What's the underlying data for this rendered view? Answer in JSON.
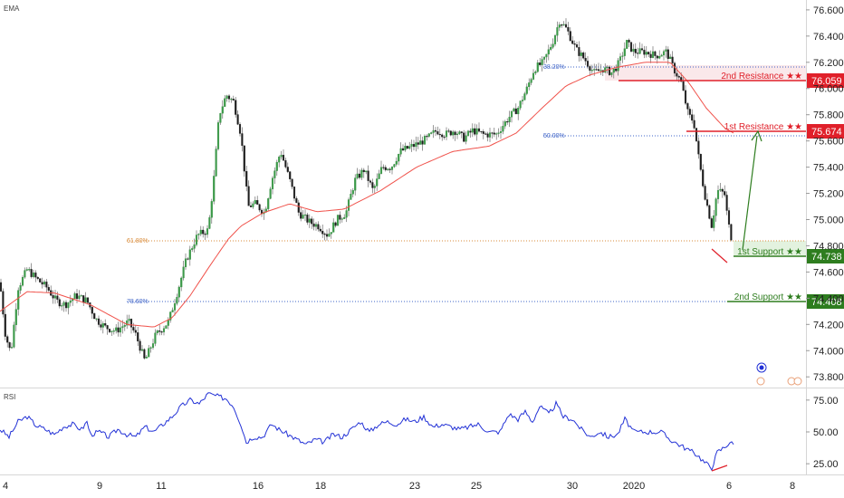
{
  "chart_data": [
    {
      "type": "candlestick",
      "indicator_label": "EMA",
      "y_ticks": [
        "76.600",
        "76.400",
        "76.200",
        "76.000",
        "75.800",
        "75.600",
        "75.400",
        "75.200",
        "75.000",
        "74.800",
        "74.600",
        "74.400",
        "74.200",
        "74.000",
        "73.800"
      ],
      "ylim": [
        73.76,
        76.62
      ],
      "x_ticks": [
        "4",
        "9",
        "11",
        "16",
        "18",
        "23",
        "25",
        "30",
        "2020",
        "6",
        "8"
      ],
      "price_series": [
        [
          0,
          74.52
        ],
        [
          6,
          74.12
        ],
        [
          12,
          73.98
        ],
        [
          20,
          74.48
        ],
        [
          30,
          74.62
        ],
        [
          40,
          74.55
        ],
        [
          52,
          74.48
        ],
        [
          62,
          74.38
        ],
        [
          72,
          74.35
        ],
        [
          84,
          74.42
        ],
        [
          96,
          74.38
        ],
        [
          106,
          74.24
        ],
        [
          116,
          74.18
        ],
        [
          128,
          74.15
        ],
        [
          142,
          74.22
        ],
        [
          150,
          74.12
        ],
        [
          160,
          73.92
        ],
        [
          172,
          74.12
        ],
        [
          186,
          74.22
        ],
        [
          196,
          74.45
        ],
        [
          206,
          74.7
        ],
        [
          218,
          74.88
        ],
        [
          230,
          74.92
        ],
        [
          236,
          75.3
        ],
        [
          242,
          75.8
        ],
        [
          250,
          75.95
        ],
        [
          258,
          75.9
        ],
        [
          266,
          75.65
        ],
        [
          274,
          75.1
        ],
        [
          282,
          75.12
        ],
        [
          292,
          75.05
        ],
        [
          300,
          75.3
        ],
        [
          310,
          75.52
        ],
        [
          320,
          75.3
        ],
        [
          330,
          75.05
        ],
        [
          342,
          74.98
        ],
        [
          352,
          74.95
        ],
        [
          362,
          74.88
        ],
        [
          372,
          75.0
        ],
        [
          382,
          75.05
        ],
        [
          392,
          75.3
        ],
        [
          402,
          75.38
        ],
        [
          412,
          75.22
        ],
        [
          422,
          75.4
        ],
        [
          432,
          75.4
        ],
        [
          442,
          75.52
        ],
        [
          452,
          75.55
        ],
        [
          462,
          75.58
        ],
        [
          472,
          75.62
        ],
        [
          482,
          75.68
        ],
        [
          492,
          75.65
        ],
        [
          502,
          75.68
        ],
        [
          512,
          75.62
        ],
        [
          522,
          75.68
        ],
        [
          534,
          75.65
        ],
        [
          548,
          75.65
        ],
        [
          562,
          75.78
        ],
        [
          572,
          75.85
        ],
        [
          582,
          76.0
        ],
        [
          590,
          76.15
        ],
        [
          600,
          76.2
        ],
        [
          610,
          76.35
        ],
        [
          618,
          76.52
        ],
        [
          626,
          76.45
        ],
        [
          636,
          76.3
        ],
        [
          646,
          76.22
        ],
        [
          656,
          76.12
        ],
        [
          666,
          76.15
        ],
        [
          676,
          76.12
        ],
        [
          684,
          76.2
        ],
        [
          692,
          76.35
        ],
        [
          700,
          76.28
        ],
        [
          712,
          76.28
        ],
        [
          724,
          76.25
        ],
        [
          736,
          76.28
        ],
        [
          744,
          76.15
        ],
        [
          752,
          76.05
        ],
        [
          760,
          75.8
        ],
        [
          766,
          75.75
        ],
        [
          772,
          75.45
        ],
        [
          778,
          75.2
        ],
        [
          786,
          74.95
        ],
        [
          792,
          75.22
        ],
        [
          800,
          75.2
        ],
        [
          804,
          74.98
        ],
        [
          808,
          74.85
        ]
      ],
      "ema_series": [
        [
          0,
          74.3
        ],
        [
          30,
          74.45
        ],
        [
          60,
          74.44
        ],
        [
          100,
          74.35
        ],
        [
          140,
          74.2
        ],
        [
          170,
          74.18
        ],
        [
          190,
          74.25
        ],
        [
          210,
          74.42
        ],
        [
          232,
          74.65
        ],
        [
          252,
          74.85
        ],
        [
          266,
          74.95
        ],
        [
          290,
          75.05
        ],
        [
          320,
          75.12
        ],
        [
          350,
          75.06
        ],
        [
          380,
          75.08
        ],
        [
          420,
          75.22
        ],
        [
          460,
          75.4
        ],
        [
          500,
          75.52
        ],
        [
          540,
          75.56
        ],
        [
          570,
          75.66
        ],
        [
          600,
          75.86
        ],
        [
          625,
          76.02
        ],
        [
          650,
          76.1
        ],
        [
          680,
          76.16
        ],
        [
          712,
          76.2
        ],
        [
          740,
          76.2
        ],
        [
          760,
          76.05
        ],
        [
          780,
          75.85
        ],
        [
          800,
          75.7
        ],
        [
          810,
          75.66
        ]
      ],
      "levels": [
        {
          "label": "2nd Resistance ★★",
          "value": "76.059",
          "color": "#e0202a"
        },
        {
          "label": "1st Resistance ★★",
          "value": "75.674",
          "color": "#e0202a"
        },
        {
          "label": "1st Support ★★",
          "value": "74.738",
          "color": "#2e7d1f"
        },
        {
          "label": "2nd Support ★★",
          "value": "74.408",
          "color": "#2e7d1f"
        }
      ],
      "fib_levels": [
        {
          "label": "61.80%",
          "color": "#d98b3a"
        },
        {
          "label": "78.60%",
          "color": "#3f64c8"
        },
        {
          "label": "50.00%",
          "color": "#3f64c8"
        },
        {
          "label": "38.20%",
          "color": "#3f64c8"
        }
      ]
    },
    {
      "type": "line",
      "indicator_label": "RSI",
      "y_ticks": [
        "75.00",
        "50.00",
        "25.00"
      ],
      "ylim": [
        18,
        82
      ],
      "series": [
        [
          0,
          52
        ],
        [
          10,
          46
        ],
        [
          20,
          58
        ],
        [
          30,
          62
        ],
        [
          40,
          55
        ],
        [
          50,
          52
        ],
        [
          60,
          48
        ],
        [
          70,
          54
        ],
        [
          80,
          56
        ],
        [
          90,
          52
        ],
        [
          96,
          58
        ],
        [
          100,
          48
        ],
        [
          110,
          50
        ],
        [
          120,
          46
        ],
        [
          130,
          52
        ],
        [
          140,
          48
        ],
        [
          150,
          46
        ],
        [
          160,
          54
        ],
        [
          170,
          50
        ],
        [
          180,
          56
        ],
        [
          190,
          62
        ],
        [
          200,
          70
        ],
        [
          210,
          75
        ],
        [
          220,
          72
        ],
        [
          230,
          80
        ],
        [
          240,
          78
        ],
        [
          250,
          76
        ],
        [
          258,
          70
        ],
        [
          266,
          56
        ],
        [
          272,
          42
        ],
        [
          280,
          46
        ],
        [
          290,
          46
        ],
        [
          300,
          56
        ],
        [
          308,
          52
        ],
        [
          318,
          48
        ],
        [
          328,
          44
        ],
        [
          338,
          40
        ],
        [
          348,
          44
        ],
        [
          358,
          42
        ],
        [
          368,
          48
        ],
        [
          378,
          46
        ],
        [
          388,
          52
        ],
        [
          398,
          58
        ],
        [
          408,
          50
        ],
        [
          418,
          56
        ],
        [
          428,
          58
        ],
        [
          438,
          56
        ],
        [
          448,
          60
        ],
        [
          458,
          58
        ],
        [
          468,
          62
        ],
        [
          478,
          54
        ],
        [
          488,
          56
        ],
        [
          498,
          54
        ],
        [
          508,
          52
        ],
        [
          518,
          54
        ],
        [
          528,
          56
        ],
        [
          540,
          50
        ],
        [
          552,
          50
        ],
        [
          562,
          64
        ],
        [
          572,
          60
        ],
        [
          580,
          66
        ],
        [
          588,
          58
        ],
        [
          596,
          70
        ],
        [
          606,
          64
        ],
        [
          614,
          72
        ],
        [
          622,
          62
        ],
        [
          632,
          60
        ],
        [
          642,
          52
        ],
        [
          652,
          46
        ],
        [
          662,
          50
        ],
        [
          672,
          46
        ],
        [
          682,
          48
        ],
        [
          690,
          60
        ],
        [
          700,
          50
        ],
        [
          714,
          50
        ],
        [
          730,
          50
        ],
        [
          740,
          44
        ],
        [
          750,
          40
        ],
        [
          760,
          36
        ],
        [
          770,
          32
        ],
        [
          778,
          26
        ],
        [
          786,
          22
        ],
        [
          792,
          34
        ],
        [
          800,
          38
        ],
        [
          806,
          42
        ],
        [
          810,
          40
        ]
      ]
    }
  ]
}
